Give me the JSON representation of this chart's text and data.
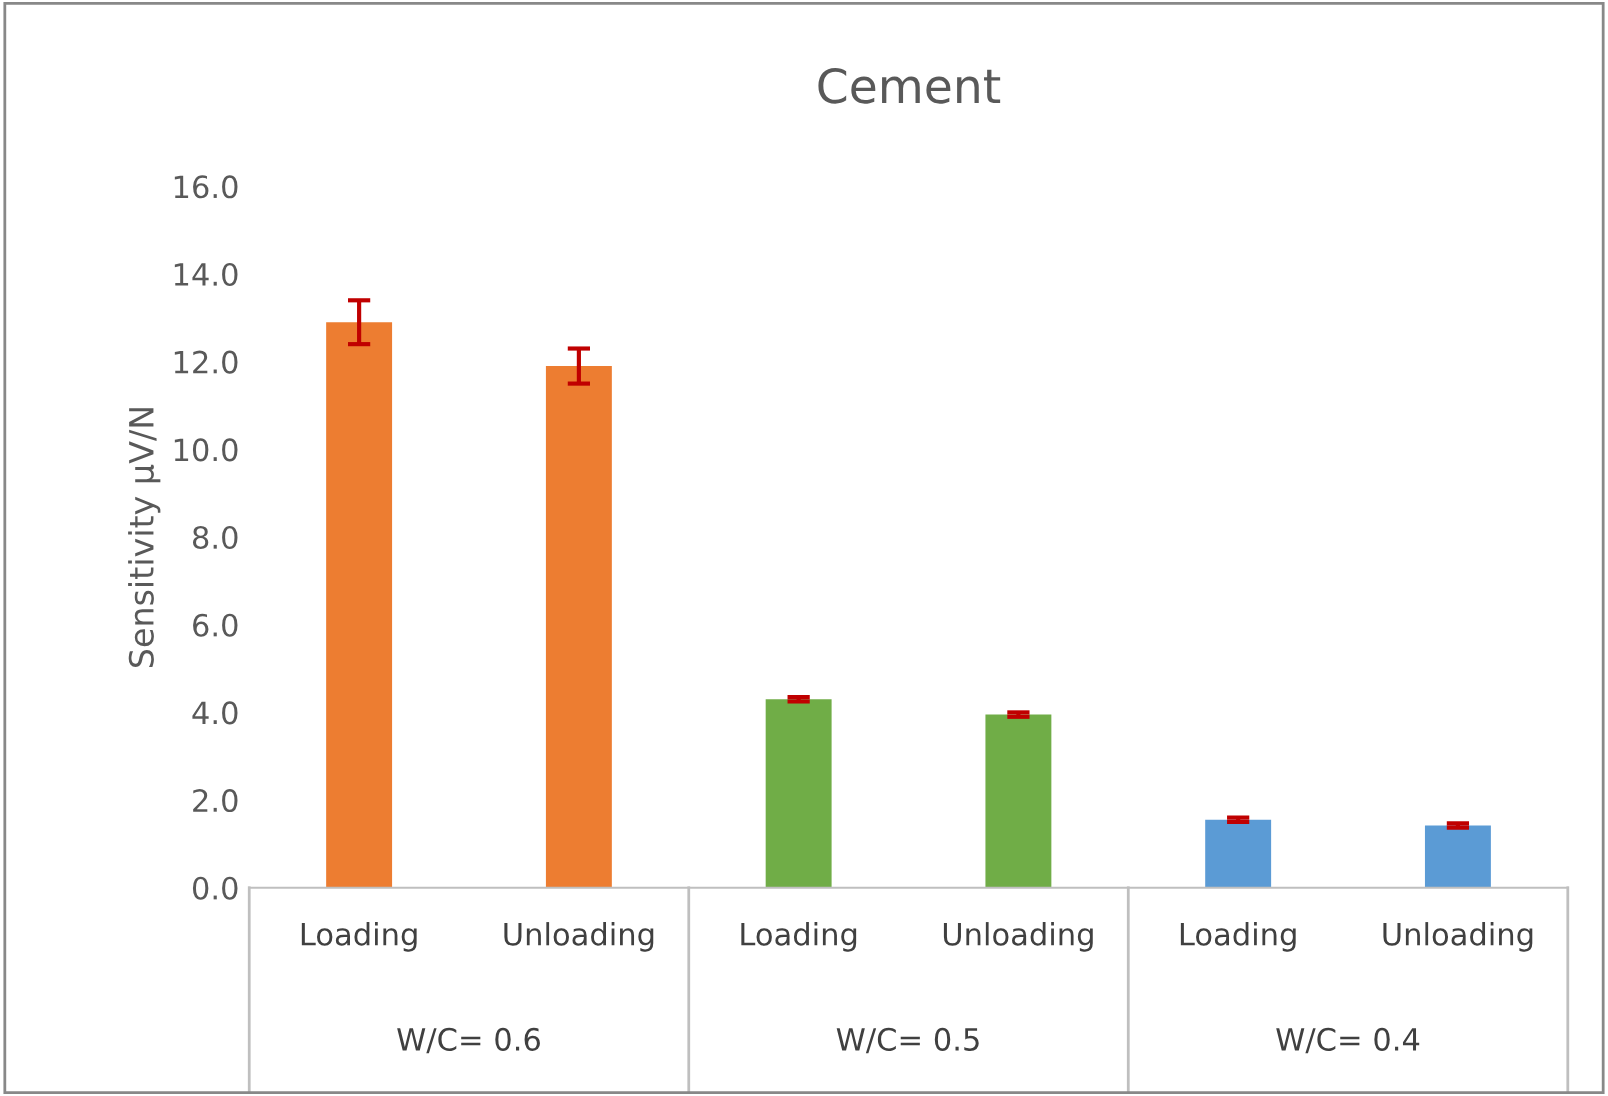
{
  "chart_data": {
    "type": "bar",
    "title": "Cement",
    "ylabel": "Sensitivity µV/N",
    "categories": [
      "Loading",
      "Unloading",
      "Loading",
      "Unloading",
      "Loading",
      "Unloading"
    ],
    "values": [
      12.9,
      11.9,
      4.3,
      3.95,
      1.55,
      1.42
    ],
    "colors": [
      "#ed7d31",
      "#ed7d31",
      "#70ad47",
      "#70ad47",
      "#5b9bd5",
      "#5b9bd5"
    ],
    "errors": [
      0.5,
      0.4,
      0.05,
      0.05,
      0.05,
      0.05
    ],
    "annotations": [
      "W/C= 0.6",
      "W/C= 0.5",
      "W/C= 0.4"
    ],
    "ylim": [
      0,
      16
    ],
    "yticks": [
      {
        "value": 0,
        "label": "0.0"
      },
      {
        "value": 2,
        "label": "2.0"
      },
      {
        "value": 4,
        "label": "4.0"
      },
      {
        "value": 6,
        "label": "6.0"
      },
      {
        "value": 8,
        "label": "8.0"
      },
      {
        "value": 10,
        "label": "10.0"
      },
      {
        "value": 12,
        "label": "12.0"
      },
      {
        "value": 14,
        "label": "14.0"
      },
      {
        "value": 16,
        "label": "16.0"
      }
    ],
    "grid": false
  }
}
